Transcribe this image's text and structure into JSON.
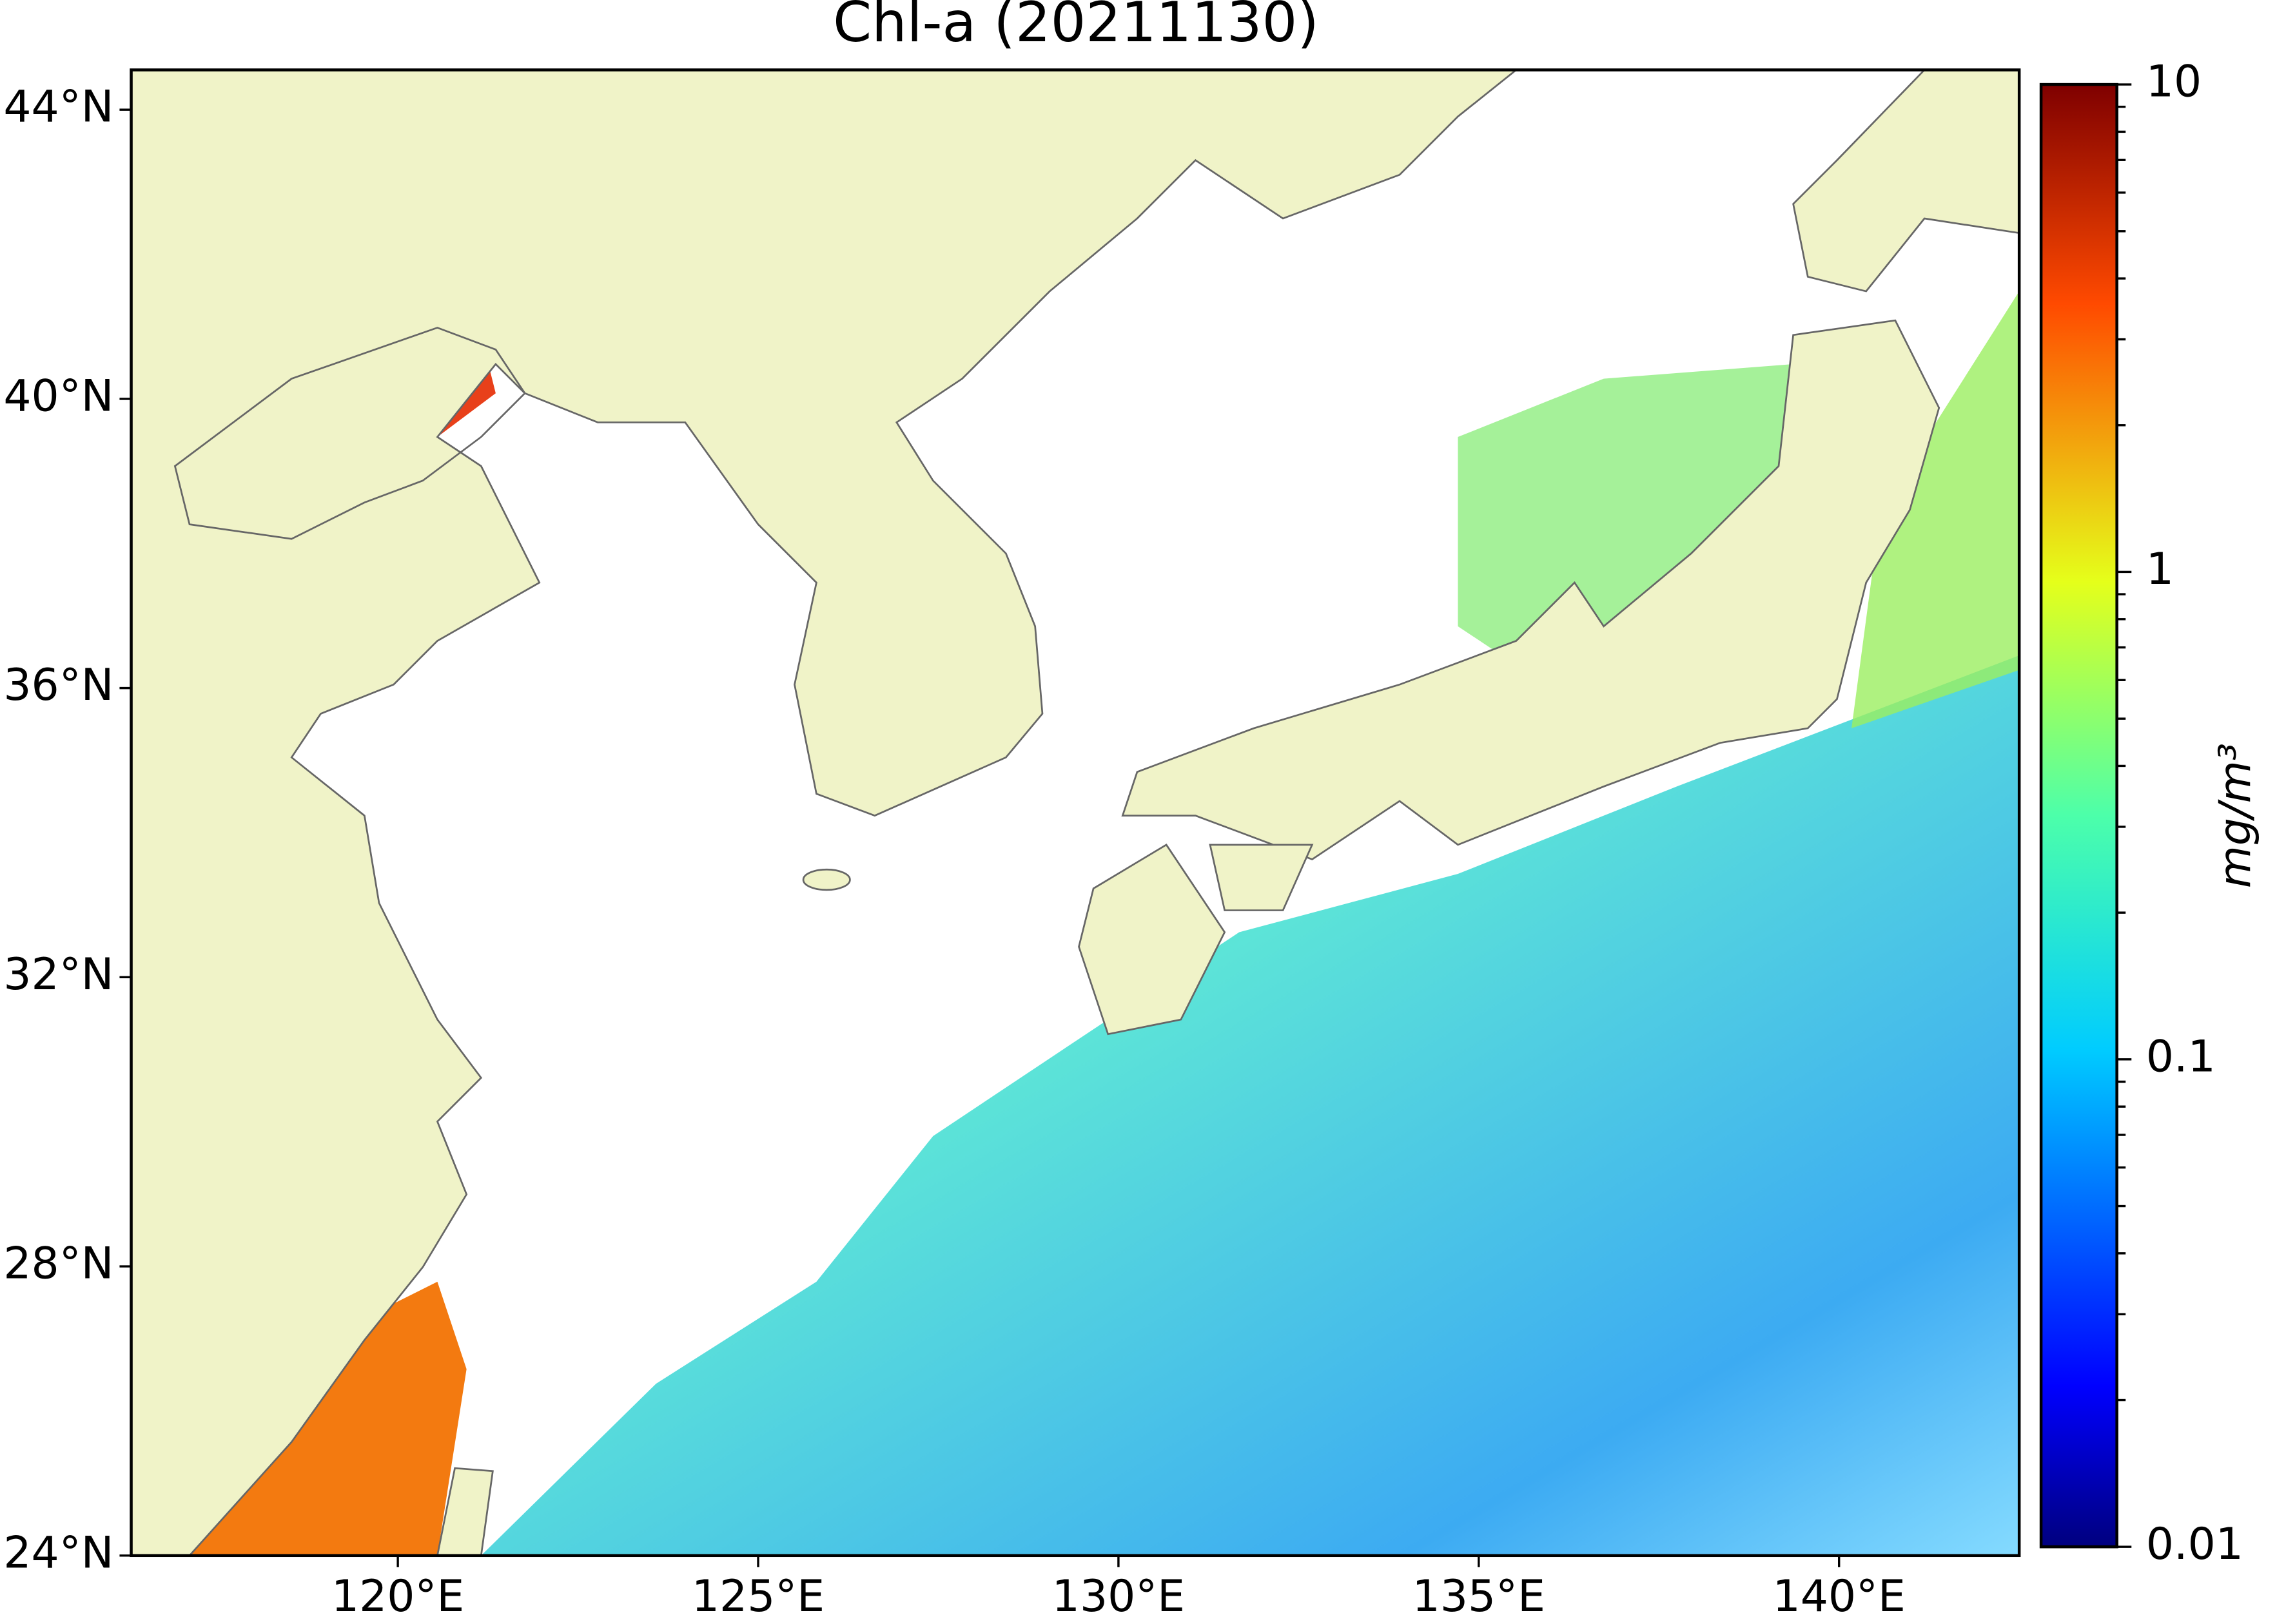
{
  "chart_data": {
    "type": "map",
    "title": "Chl-a (20211130)",
    "xlim": [
      116.3,
      142.5
    ],
    "ylim": [
      24,
      44.55
    ],
    "xticks": [
      {
        "value": 120,
        "label": "120°E"
      },
      {
        "value": 125,
        "label": "125°E"
      },
      {
        "value": 130,
        "label": "130°E"
      },
      {
        "value": 135,
        "label": "135°E"
      },
      {
        "value": 140,
        "label": "140°E"
      }
    ],
    "yticks": [
      {
        "value": 24,
        "label": "24°N"
      },
      {
        "value": 28,
        "label": "28°N"
      },
      {
        "value": 32,
        "label": "32°N"
      },
      {
        "value": 36,
        "label": "36°N"
      },
      {
        "value": 40,
        "label": "40°N"
      },
      {
        "value": 44,
        "label": "44°N"
      }
    ],
    "colorbar": {
      "label": "mg/m³",
      "clim": [
        0.01,
        10
      ],
      "log": true,
      "ticks": [
        0.01,
        0.1,
        1,
        10
      ],
      "colormap": "jet"
    }
  }
}
